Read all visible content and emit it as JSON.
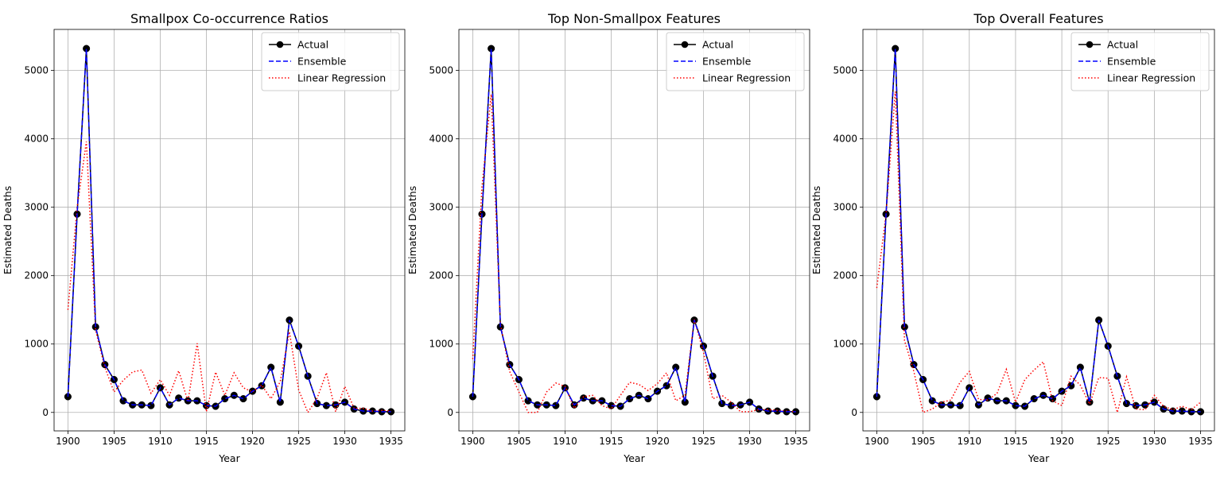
{
  "colors": {
    "actual": "#000000",
    "ensemble": "#0000ff",
    "linear": "#ff0000",
    "grid": "#b0b0b0",
    "marker_edge": "#000000"
  },
  "legend_labels": {
    "actual": "Actual",
    "ensemble": "Ensemble",
    "linear": "Linear Regression"
  },
  "chart_data": [
    {
      "type": "line",
      "title": "Smallpox Co-occurrence Ratios",
      "xlabel": "Year",
      "ylabel": "Estimated Deaths",
      "xlim": [
        1898.5,
        1936.5
      ],
      "ylim": [
        -270,
        5600
      ],
      "xticks": [
        1900,
        1905,
        1910,
        1915,
        1920,
        1925,
        1930,
        1935
      ],
      "yticks": [
        0,
        1000,
        2000,
        3000,
        4000,
        5000
      ],
      "grid": true,
      "legend_position": "top-right",
      "x": [
        1900,
        1901,
        1902,
        1903,
        1904,
        1905,
        1906,
        1907,
        1908,
        1909,
        1910,
        1911,
        1912,
        1913,
        1914,
        1915,
        1916,
        1917,
        1918,
        1919,
        1920,
        1921,
        1922,
        1923,
        1924,
        1925,
        1926,
        1927,
        1928,
        1929,
        1930,
        1931,
        1932,
        1933,
        1934,
        1935
      ],
      "series": [
        {
          "name": "Actual",
          "values": [
            230,
            2900,
            5320,
            1250,
            700,
            480,
            170,
            110,
            110,
            100,
            360,
            110,
            210,
            170,
            170,
            100,
            90,
            200,
            250,
            200,
            310,
            390,
            660,
            150,
            1350,
            970,
            530,
            130,
            100,
            110,
            150,
            50,
            20,
            20,
            10,
            10
          ]
        },
        {
          "name": "Ensemble",
          "values": [
            230,
            2900,
            5320,
            1250,
            700,
            480,
            170,
            110,
            110,
            100,
            360,
            110,
            210,
            170,
            170,
            100,
            90,
            200,
            250,
            200,
            310,
            390,
            660,
            150,
            1350,
            970,
            530,
            130,
            100,
            110,
            150,
            50,
            20,
            20,
            10,
            10
          ]
        },
        {
          "name": "Linear Regression",
          "values": [
            1500,
            3000,
            3960,
            1200,
            660,
            300,
            470,
            590,
            620,
            280,
            480,
            250,
            610,
            160,
            1010,
            10,
            590,
            250,
            580,
            360,
            300,
            400,
            200,
            450,
            1180,
            330,
            0,
            210,
            580,
            10,
            380,
            60,
            60,
            20,
            30,
            20
          ]
        }
      ]
    },
    {
      "type": "line",
      "title": "Top Non-Smallpox Features",
      "xlabel": "Year",
      "ylabel": "Estimated Deaths",
      "xlim": [
        1898.5,
        1936.5
      ],
      "ylim": [
        -270,
        5600
      ],
      "xticks": [
        1900,
        1905,
        1910,
        1915,
        1920,
        1925,
        1930,
        1935
      ],
      "yticks": [
        0,
        1000,
        2000,
        3000,
        4000,
        5000
      ],
      "grid": true,
      "legend_position": "top-right",
      "x": [
        1900,
        1901,
        1902,
        1903,
        1904,
        1905,
        1906,
        1907,
        1908,
        1909,
        1910,
        1911,
        1912,
        1913,
        1914,
        1915,
        1916,
        1917,
        1918,
        1919,
        1920,
        1921,
        1922,
        1923,
        1924,
        1925,
        1926,
        1927,
        1928,
        1929,
        1930,
        1931,
        1932,
        1933,
        1934,
        1935
      ],
      "series": [
        {
          "name": "Actual",
          "values": [
            230,
            2900,
            5320,
            1250,
            700,
            480,
            170,
            110,
            110,
            100,
            360,
            110,
            210,
            170,
            170,
            100,
            90,
            200,
            250,
            200,
            310,
            390,
            660,
            150,
            1350,
            970,
            530,
            130,
            100,
            110,
            150,
            50,
            20,
            20,
            10,
            10
          ]
        },
        {
          "name": "Ensemble",
          "values": [
            230,
            2900,
            5320,
            1250,
            700,
            480,
            170,
            110,
            110,
            100,
            360,
            110,
            210,
            170,
            170,
            100,
            90,
            200,
            250,
            200,
            310,
            390,
            660,
            150,
            1350,
            970,
            530,
            130,
            100,
            110,
            150,
            50,
            20,
            20,
            10,
            10
          ]
        },
        {
          "name": "Linear Regression",
          "values": [
            780,
            3300,
            4650,
            1300,
            600,
            300,
            0,
            0,
            300,
            430,
            380,
            60,
            230,
            250,
            100,
            50,
            250,
            440,
            410,
            320,
            420,
            580,
            170,
            250,
            1360,
            880,
            200,
            250,
            150,
            10,
            10,
            40,
            40,
            30,
            20,
            10
          ]
        }
      ]
    },
    {
      "type": "line",
      "title": "Top Overall Features",
      "xlabel": "Year",
      "ylabel": "Estimated Deaths",
      "xlim": [
        1898.5,
        1936.5
      ],
      "ylim": [
        -270,
        5600
      ],
      "xticks": [
        1900,
        1905,
        1910,
        1915,
        1920,
        1925,
        1930,
        1935
      ],
      "yticks": [
        0,
        1000,
        2000,
        3000,
        4000,
        5000
      ],
      "grid": true,
      "legend_position": "top-right",
      "x": [
        1900,
        1901,
        1902,
        1903,
        1904,
        1905,
        1906,
        1907,
        1908,
        1909,
        1910,
        1911,
        1912,
        1913,
        1914,
        1915,
        1916,
        1917,
        1918,
        1919,
        1920,
        1921,
        1922,
        1923,
        1924,
        1925,
        1926,
        1927,
        1928,
        1929,
        1930,
        1931,
        1932,
        1933,
        1934,
        1935
      ],
      "series": [
        {
          "name": "Actual",
          "values": [
            230,
            2900,
            5320,
            1250,
            700,
            480,
            170,
            110,
            110,
            100,
            360,
            110,
            210,
            170,
            170,
            100,
            90,
            200,
            250,
            200,
            310,
            390,
            660,
            150,
            1350,
            970,
            530,
            130,
            100,
            110,
            150,
            50,
            20,
            20,
            10,
            10
          ]
        },
        {
          "name": "Ensemble",
          "values": [
            230,
            2900,
            5320,
            1250,
            700,
            480,
            170,
            110,
            110,
            100,
            360,
            110,
            210,
            170,
            170,
            100,
            90,
            200,
            250,
            200,
            310,
            390,
            660,
            150,
            1350,
            970,
            530,
            130,
            100,
            110,
            150,
            50,
            20,
            20,
            10,
            10
          ]
        },
        {
          "name": "Linear Regression",
          "values": [
            1820,
            2900,
            4690,
            1050,
            600,
            0,
            50,
            150,
            180,
            440,
            600,
            190,
            180,
            280,
            630,
            150,
            480,
            620,
            740,
            170,
            100,
            530,
            400,
            120,
            510,
            500,
            0,
            520,
            50,
            40,
            250,
            90,
            40,
            90,
            40,
            150
          ]
        }
      ]
    }
  ]
}
